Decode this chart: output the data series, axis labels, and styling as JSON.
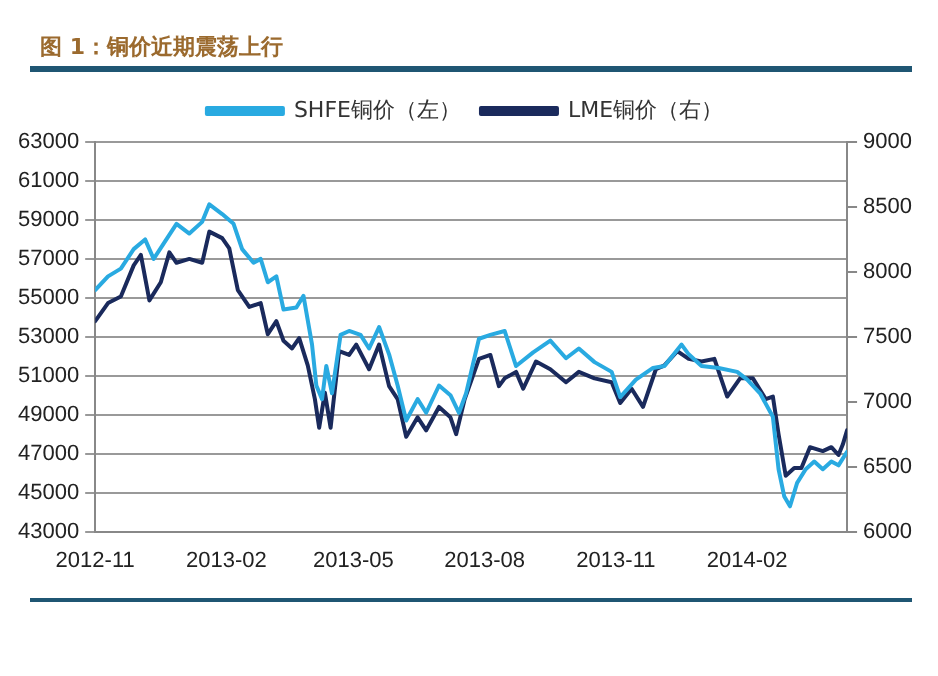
{
  "chart_data": {
    "type": "line",
    "title": "图 1：铜价近期震荡上行",
    "xlim": [
      "2012-11-01",
      "2014-04-12"
    ],
    "xticks": [
      "2012-11",
      "2013-02",
      "2013-05",
      "2013-08",
      "2013-11",
      "2014-02"
    ],
    "ylim": [
      43000,
      63000
    ],
    "yticks": [
      43000,
      45000,
      47000,
      49000,
      51000,
      53000,
      55000,
      57000,
      59000,
      61000,
      63000
    ],
    "y2lim": [
      6000,
      9000
    ],
    "y2ticks": [
      6000,
      6500,
      7000,
      7500,
      8000,
      8500,
      9000
    ],
    "grid": "y",
    "legend": "top",
    "marker": "none",
    "line_style": "solid",
    "series": [
      {
        "name": "SHFE铜价（左）",
        "color": "#29aae1",
        "x": [
          "2012-11-01",
          "2012-11-10",
          "2012-11-19",
          "2012-11-28",
          "2012-12-06",
          "2012-12-12",
          "2012-12-20",
          "2012-12-28",
          "2013-01-06",
          "2013-01-15",
          "2013-01-20",
          "2013-01-29",
          "2013-02-06",
          "2013-02-12",
          "2013-02-20",
          "2013-02-25",
          "2013-03-02",
          "2013-03-08",
          "2013-03-13",
          "2013-03-22",
          "2013-03-27",
          "2013-04-02",
          "2013-04-05",
          "2013-04-09",
          "2013-04-12",
          "2013-04-16",
          "2013-04-22",
          "2013-04-28",
          "2013-05-06",
          "2013-05-12",
          "2013-05-19",
          "2013-05-26",
          "2013-06-01",
          "2013-06-07",
          "2013-06-15",
          "2013-06-21",
          "2013-06-30",
          "2013-07-08",
          "2013-07-14",
          "2013-07-19",
          "2013-07-28",
          "2013-08-05",
          "2013-08-15",
          "2013-08-23",
          "2013-09-04",
          "2013-09-16",
          "2013-09-27",
          "2013-10-06",
          "2013-10-17",
          "2013-10-29",
          "2013-11-04",
          "2013-11-15",
          "2013-11-27",
          "2013-12-05",
          "2013-12-17",
          "2013-12-22",
          "2013-12-31",
          "2014-01-12",
          "2014-01-25",
          "2014-02-01",
          "2014-02-10",
          "2014-02-19",
          "2014-02-23",
          "2014-02-27",
          "2014-03-03",
          "2014-03-08",
          "2014-03-14",
          "2014-03-20",
          "2014-03-26",
          "2014-04-01",
          "2014-04-06",
          "2014-04-12"
        ],
        "values": [
          55400,
          56100,
          56500,
          57500,
          58000,
          57000,
          57900,
          58800,
          58300,
          58900,
          59800,
          59300,
          58800,
          57500,
          56800,
          57000,
          55800,
          56100,
          54400,
          54500,
          55100,
          52600,
          50500,
          49800,
          51500,
          50100,
          53100,
          53300,
          53100,
          52400,
          53500,
          52100,
          50500,
          48700,
          49800,
          49100,
          50500,
          50000,
          49100,
          50100,
          52900,
          53100,
          53300,
          51500,
          52200,
          52800,
          51900,
          52400,
          51700,
          51200,
          49900,
          50800,
          51400,
          51500,
          52600,
          52100,
          51500,
          51400,
          51200,
          50800,
          50100,
          48900,
          46200,
          44800,
          44300,
          45500,
          46200,
          46600,
          46200,
          46600,
          46400,
          47100
        ]
      },
      {
        "name": "LME铜价（右）",
        "color": "#1a2a5c",
        "axis": "y2",
        "x": [
          "2012-11-01",
          "2012-11-10",
          "2012-11-19",
          "2012-11-28",
          "2012-12-03",
          "2012-12-09",
          "2012-12-17",
          "2012-12-23",
          "2012-12-28",
          "2013-01-06",
          "2013-01-15",
          "2013-01-20",
          "2013-01-29",
          "2013-02-03",
          "2013-02-09",
          "2013-02-17",
          "2013-02-25",
          "2013-03-02",
          "2013-03-08",
          "2013-03-13",
          "2013-03-19",
          "2013-03-24",
          "2013-03-30",
          "2013-04-04",
          "2013-04-07",
          "2013-04-11",
          "2013-04-15",
          "2013-04-21",
          "2013-04-28",
          "2013-05-03",
          "2013-05-12",
          "2013-05-19",
          "2013-05-26",
          "2013-06-01",
          "2013-06-07",
          "2013-06-15",
          "2013-06-21",
          "2013-06-30",
          "2013-07-08",
          "2013-07-12",
          "2013-07-18",
          "2013-07-28",
          "2013-08-05",
          "2013-08-11",
          "2013-08-15",
          "2013-08-23",
          "2013-08-28",
          "2013-09-06",
          "2013-09-16",
          "2013-09-27",
          "2013-10-06",
          "2013-10-17",
          "2013-10-29",
          "2013-11-04",
          "2013-11-12",
          "2013-11-20",
          "2013-11-29",
          "2013-12-05",
          "2013-12-14",
          "2013-12-22",
          "2013-12-31",
          "2014-01-09",
          "2014-01-18",
          "2014-01-27",
          "2014-02-05",
          "2014-02-14",
          "2014-02-19",
          "2014-02-23",
          "2014-02-28",
          "2014-03-06",
          "2014-03-11",
          "2014-03-17",
          "2014-03-26",
          "2014-04-01",
          "2014-04-06",
          "2014-04-09",
          "2014-04-12"
        ],
        "values": [
          7620,
          7760,
          7810,
          8050,
          8130,
          7780,
          7920,
          8150,
          8070,
          8100,
          8070,
          8310,
          8260,
          8180,
          7860,
          7730,
          7760,
          7520,
          7620,
          7470,
          7410,
          7490,
          7280,
          7020,
          6800,
          7070,
          6800,
          7390,
          7360,
          7440,
          7250,
          7440,
          7120,
          7020,
          6730,
          6880,
          6780,
          6960,
          6880,
          6750,
          7020,
          7330,
          7360,
          7120,
          7180,
          7230,
          7100,
          7310,
          7250,
          7150,
          7230,
          7180,
          7150,
          6990,
          7100,
          6960,
          7250,
          7280,
          7390,
          7330,
          7310,
          7330,
          7040,
          7180,
          7180,
          7020,
          7040,
          6750,
          6430,
          6490,
          6490,
          6650,
          6620,
          6650,
          6590,
          6670,
          6780
        ]
      }
    ]
  }
}
